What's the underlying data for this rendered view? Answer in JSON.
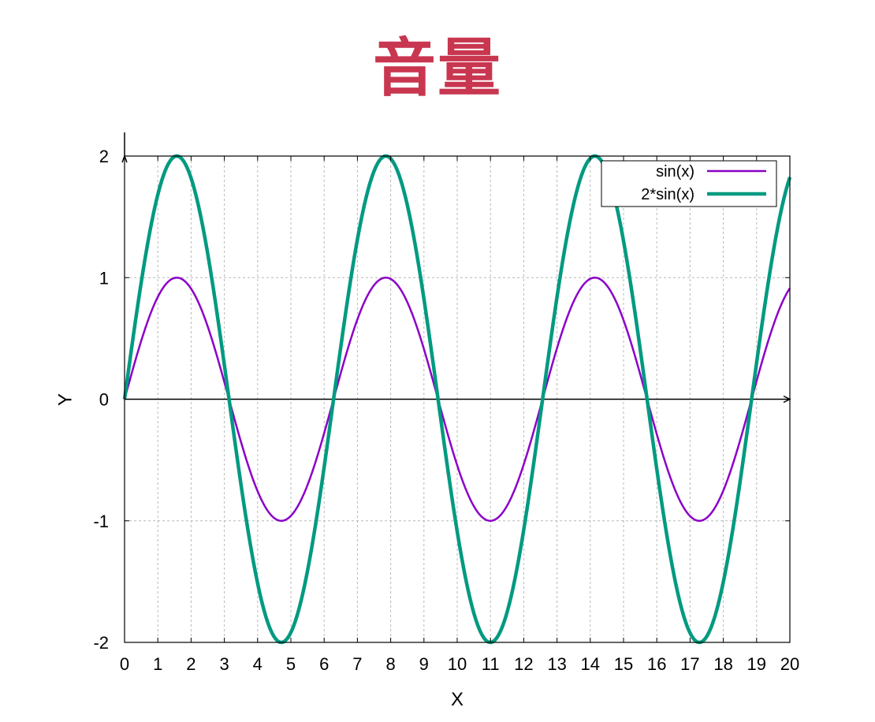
{
  "title_text": "音量",
  "colors": {
    "title": "#c8364f",
    "series_sin": "#8b00c8",
    "series_2sin": "#009a80",
    "grid": "#b8b8b8",
    "axis": "#000000"
  },
  "chart_data": {
    "type": "line",
    "title": "音量",
    "xlabel": "X",
    "ylabel": "Y",
    "xlim": [
      0,
      20
    ],
    "ylim": [
      -2,
      2
    ],
    "x_ticks": [
      0,
      1,
      2,
      3,
      4,
      5,
      6,
      7,
      8,
      9,
      10,
      11,
      12,
      13,
      14,
      15,
      16,
      17,
      18,
      19,
      20
    ],
    "y_ticks": [
      2,
      1,
      0,
      -1,
      -2
    ],
    "grid": true,
    "legend_position": "top-right",
    "series": [
      {
        "name": "sin(x)",
        "formula": "sin(x)",
        "amplitude": 1
      },
      {
        "name": "2*sin(x)",
        "formula": "2*sin(x)",
        "amplitude": 2
      }
    ],
    "x": [
      0,
      1,
      2,
      3,
      4,
      5,
      6,
      7,
      8,
      9,
      10,
      11,
      12,
      13,
      14,
      15,
      16,
      17,
      18,
      19,
      20
    ],
    "series_values": [
      [
        0,
        0.84,
        0.91,
        0.14,
        -0.76,
        -0.96,
        -0.28,
        0.66,
        0.99,
        0.41,
        -0.54,
        -1.0,
        -0.54,
        0.42,
        0.99,
        0.65,
        -0.29,
        -0.96,
        -0.75,
        0.15,
        0.91
      ],
      [
        0,
        1.68,
        1.82,
        0.28,
        -1.51,
        -1.92,
        -0.56,
        1.31,
        1.98,
        0.82,
        -1.09,
        -2.0,
        -1.07,
        0.84,
        1.98,
        1.3,
        -0.58,
        -1.92,
        -1.5,
        0.3,
        1.83
      ]
    ]
  }
}
